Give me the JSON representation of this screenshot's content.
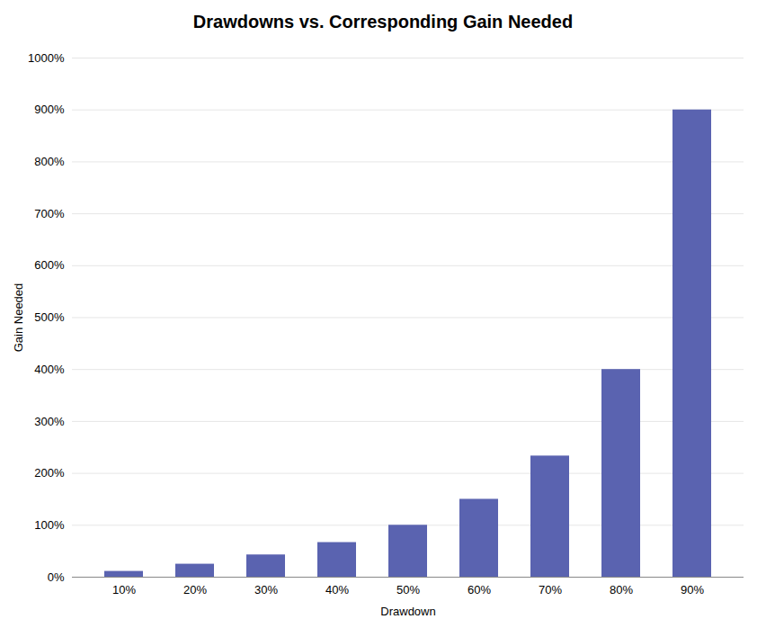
{
  "chart_data": {
    "type": "bar",
    "title": "Drawdowns vs. Corresponding Gain Needed",
    "xlabel": "Drawdown",
    "ylabel": "Gain Needed",
    "categories": [
      "10%",
      "20%",
      "30%",
      "40%",
      "50%",
      "60%",
      "70%",
      "80%",
      "90%"
    ],
    "values": [
      11.11,
      25.0,
      42.86,
      66.67,
      100.0,
      150.0,
      233.33,
      400.0,
      900.0
    ],
    "color": "#5a63b0",
    "ylim": [
      0,
      1000
    ],
    "yticks": [
      {
        "value": 0,
        "label": "0%"
      },
      {
        "value": 100,
        "label": "100%"
      },
      {
        "value": 200,
        "label": "200%"
      },
      {
        "value": 300,
        "label": "300%"
      },
      {
        "value": 400,
        "label": "400%"
      },
      {
        "value": 500,
        "label": "500%"
      },
      {
        "value": 600,
        "label": "600%"
      },
      {
        "value": 700,
        "label": "700%"
      },
      {
        "value": 800,
        "label": "800%"
      },
      {
        "value": 900,
        "label": "900%"
      },
      {
        "value": 1000,
        "label": "1000%"
      }
    ],
    "grid": true
  }
}
